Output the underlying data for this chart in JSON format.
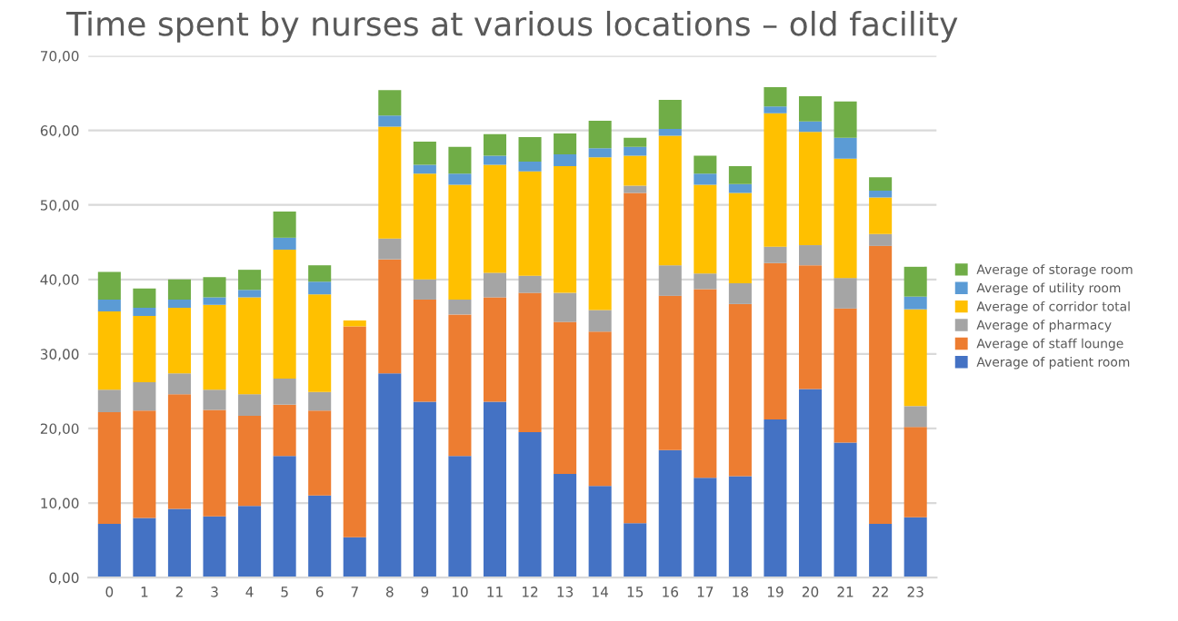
{
  "chart_data": {
    "type": "bar",
    "title": "Time spent by nurses at various locations – old facility",
    "stacked": true,
    "grid": "y",
    "legend": "right",
    "categories": [
      "0",
      "1",
      "2",
      "3",
      "4",
      "5",
      "6",
      "7",
      "8",
      "9",
      "10",
      "11",
      "12",
      "13",
      "14",
      "15",
      "16",
      "17",
      "18",
      "19",
      "20",
      "21",
      "22",
      "23"
    ],
    "ylim": [
      0,
      70
    ],
    "yticks": [
      {
        "value": 0,
        "label": "0,00"
      },
      {
        "value": 10,
        "label": "10,00"
      },
      {
        "value": 20,
        "label": "20,00"
      },
      {
        "value": 30,
        "label": "30,00"
      },
      {
        "value": 40,
        "label": "40,00"
      },
      {
        "value": 50,
        "label": "50,00"
      },
      {
        "value": 60,
        "label": "60,00"
      },
      {
        "value": 70,
        "label": "70,00"
      }
    ],
    "series": [
      {
        "name": "Average of patient room",
        "color": "#4472c4",
        "values": [
          7.2,
          8.0,
          9.2,
          8.2,
          9.6,
          16.3,
          11.0,
          5.4,
          27.4,
          23.6,
          16.3,
          23.6,
          19.5,
          13.9,
          12.3,
          7.3,
          17.1,
          13.4,
          13.6,
          21.2,
          25.3,
          18.1,
          7.2,
          8.1
        ]
      },
      {
        "name": "Average of staff lounge",
        "color": "#ed7d31",
        "values": [
          15.0,
          14.4,
          15.4,
          14.3,
          12.1,
          6.9,
          11.4,
          28.3,
          15.3,
          13.7,
          19.0,
          14.0,
          18.7,
          20.4,
          20.7,
          44.3,
          20.7,
          25.3,
          23.1,
          21.0,
          16.6,
          18.0,
          37.3,
          12.1
        ]
      },
      {
        "name": "Average of pharmacy",
        "color": "#a5a5a5",
        "values": [
          3.0,
          3.8,
          2.8,
          2.7,
          2.9,
          3.5,
          2.5,
          0,
          2.8,
          2.7,
          2.0,
          3.3,
          2.3,
          3.9,
          2.9,
          1.0,
          4.1,
          2.1,
          2.8,
          2.2,
          2.7,
          4.1,
          1.6,
          2.8
        ]
      },
      {
        "name": "Average of corridor total",
        "color": "#ffc000",
        "values": [
          10.5,
          8.9,
          8.8,
          11.4,
          13.0,
          17.3,
          13.1,
          0.8,
          15.0,
          14.2,
          15.4,
          14.5,
          14.0,
          17.0,
          20.5,
          4.0,
          17.4,
          11.9,
          12.1,
          17.9,
          15.2,
          16.0,
          4.9,
          13.0
        ]
      },
      {
        "name": "Average of utility room",
        "color": "#5b9bd5",
        "values": [
          1.6,
          1.1,
          1.1,
          1.0,
          1.0,
          1.6,
          1.7,
          0,
          1.5,
          1.2,
          1.5,
          1.2,
          1.3,
          1.6,
          1.2,
          1.2,
          0.9,
          1.5,
          1.2,
          0.9,
          1.4,
          2.8,
          0.9,
          1.7
        ]
      },
      {
        "name": "Average of storage room",
        "color": "#70ad47",
        "values": [
          3.7,
          2.6,
          2.7,
          2.7,
          2.7,
          3.5,
          2.2,
          0,
          3.4,
          3.1,
          3.6,
          2.9,
          3.3,
          2.8,
          3.7,
          1.2,
          3.9,
          2.4,
          2.4,
          2.6,
          3.4,
          4.9,
          1.8,
          4.0
        ]
      }
    ]
  }
}
